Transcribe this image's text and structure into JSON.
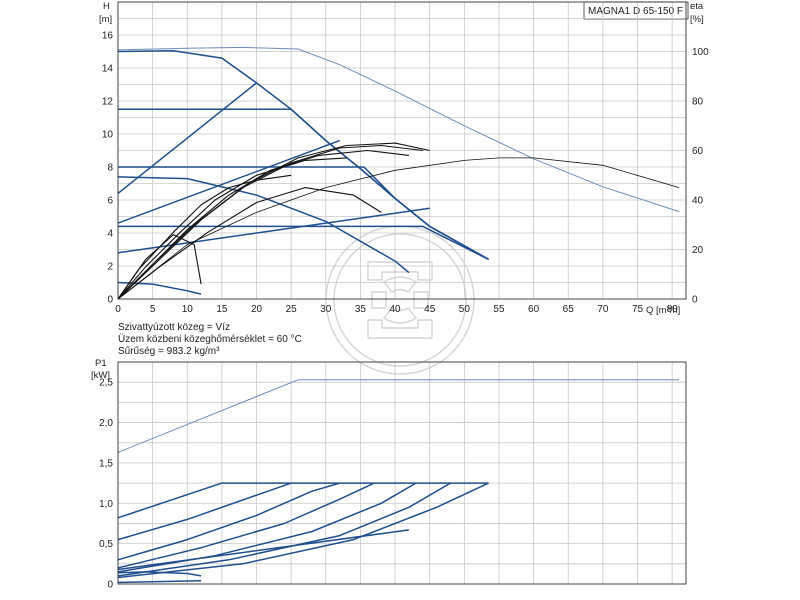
{
  "title": "MAGNA1 D 65-150 F",
  "info": {
    "line1": "Szivattyúzott közeg = Víz",
    "line2": "Üzem közbeni közeghőmérséklet = 60 °C",
    "line3": "Sűrűség = 983.2 kg/m³"
  },
  "colors": {
    "curve": "#1f4e8c",
    "thin": "#6f8fb8",
    "eta": "#111111",
    "grid": "#c8c8c8"
  },
  "chart_data": [
    {
      "type": "line",
      "title": "MAGNA1 D 65-150 F",
      "xlabel": "Q [m³/h]",
      "ylabel_unit": "[m]",
      "ylabel": "H",
      "y2label": "eta",
      "y2label_unit": "[%]",
      "xlim": [
        0,
        82
      ],
      "ylim": [
        0,
        18
      ],
      "y2lim": [
        0,
        120
      ],
      "x_ticks": [
        0,
        5,
        10,
        15,
        20,
        25,
        30,
        35,
        40,
        45,
        50,
        55,
        60,
        65,
        70,
        75,
        80
      ],
      "y_ticks": [
        0,
        2,
        4,
        6,
        8,
        10,
        12,
        14,
        16
      ],
      "y2_ticks": [
        0,
        20,
        40,
        60,
        80,
        100
      ],
      "grid": true,
      "series": [
        {
          "style": "thin",
          "x": [
            0,
            10,
            18,
            26,
            32,
            40,
            50,
            60,
            70,
            81
          ],
          "y": [
            15.1,
            15.2,
            15.25,
            15.15,
            14.2,
            12.6,
            10.5,
            8.5,
            6.8,
            5.3
          ]
        },
        {
          "style": "bold",
          "x": [
            0,
            8,
            15,
            20,
            25,
            30,
            35,
            40,
            45,
            53.5
          ],
          "y": [
            15.0,
            15.05,
            14.6,
            13.1,
            11.5,
            9.6,
            7.9,
            6.1,
            4.4,
            2.4
          ]
        },
        {
          "style": "bold",
          "x": [
            0,
            20
          ],
          "y": [
            6.4,
            13.1
          ]
        },
        {
          "style": "bold",
          "x": [
            0,
            25,
            30,
            35,
            40,
            45,
            53.5
          ],
          "y": [
            11.5,
            11.5,
            9.6,
            7.9,
            6.1,
            4.4,
            2.4
          ]
        },
        {
          "style": "bold",
          "x": [
            0,
            32
          ],
          "y": [
            4.6,
            9.6
          ]
        },
        {
          "style": "bold",
          "x": [
            0,
            35.5,
            40,
            45,
            53.5
          ],
          "y": [
            8.0,
            8.0,
            6.1,
            4.4,
            2.4
          ]
        },
        {
          "style": "bold",
          "x": [
            0,
            10,
            20,
            30,
            40,
            42
          ],
          "y": [
            7.4,
            7.3,
            6.3,
            4.7,
            2.3,
            1.6
          ]
        },
        {
          "style": "bold",
          "x": [
            0,
            44,
            53.5
          ],
          "y": [
            4.4,
            4.4,
            2.4
          ]
        },
        {
          "style": "bold",
          "x": [
            0,
            45
          ],
          "y": [
            2.8,
            5.5
          ]
        },
        {
          "style": "bold",
          "x": [
            0,
            5,
            10,
            12
          ],
          "y": [
            1.0,
            0.9,
            0.5,
            0.3
          ]
        },
        {
          "style": "eta",
          "x": [
            0,
            3,
            8,
            12,
            16,
            20,
            25
          ],
          "y": [
            0,
            12,
            27,
            38,
            45,
            48,
            50
          ]
        },
        {
          "style": "eta",
          "x": [
            0,
            4,
            9,
            14,
            20,
            27,
            33
          ],
          "y": [
            0,
            13,
            27,
            40,
            50,
            56,
            57
          ]
        },
        {
          "style": "eta",
          "x": [
            0,
            5,
            10,
            16,
            22,
            29,
            36,
            42
          ],
          "y": [
            0,
            14,
            28,
            42,
            52,
            58,
            60,
            58
          ]
        },
        {
          "style": "eta",
          "x": [
            0,
            5,
            11,
            18,
            25,
            32,
            38,
            44
          ],
          "y": [
            0,
            14,
            30,
            45,
            55,
            61,
            62,
            60
          ]
        },
        {
          "style": "eta",
          "x": [
            0,
            6,
            12,
            19,
            26,
            33,
            40,
            45
          ],
          "y": [
            0,
            16,
            32,
            47,
            57,
            62,
            63,
            60
          ]
        },
        {
          "style": "eta",
          "x": [
            0,
            4,
            8,
            11,
            12
          ],
          "y": [
            0,
            16,
            26,
            22,
            6
          ]
        },
        {
          "style": "eta",
          "x": [
            0,
            6,
            13,
            20,
            27,
            34,
            38
          ],
          "y": [
            0,
            13,
            27,
            39,
            45,
            42,
            35
          ]
        },
        {
          "style": "eta_thin",
          "x": [
            0,
            10,
            20,
            30,
            40,
            50,
            55,
            60,
            70,
            81
          ],
          "y": [
            0,
            22,
            35,
            45,
            52,
            56,
            57,
            57,
            54,
            45
          ]
        }
      ]
    },
    {
      "type": "line",
      "ylabel": "P1",
      "ylabel_unit": "[kW]",
      "xlim": [
        0,
        82
      ],
      "ylim": [
        0,
        2.75
      ],
      "y_ticks": [
        "0",
        "0,5",
        "1,0",
        "1,5",
        "2,0",
        "2,5"
      ],
      "y_tick_values": [
        0,
        0.5,
        1.0,
        1.5,
        2.0,
        2.5
      ],
      "grid": true,
      "series": [
        {
          "style": "thin",
          "x": [
            0,
            26,
            81
          ],
          "y": [
            1.63,
            2.53,
            2.53
          ]
        },
        {
          "style": "bold",
          "x": [
            0,
            15,
            53.5
          ],
          "y": [
            0.82,
            1.25,
            1.25
          ]
        },
        {
          "style": "bold",
          "x": [
            0,
            10,
            20,
            25
          ],
          "y": [
            0.55,
            0.8,
            1.1,
            1.25
          ]
        },
        {
          "style": "bold",
          "x": [
            0,
            10,
            20,
            28,
            32
          ],
          "y": [
            0.3,
            0.55,
            0.85,
            1.15,
            1.25
          ]
        },
        {
          "style": "bold",
          "x": [
            0,
            12,
            24,
            32,
            37
          ],
          "y": [
            0.2,
            0.45,
            0.75,
            1.05,
            1.25
          ]
        },
        {
          "style": "bold",
          "x": [
            0,
            14,
            28,
            38,
            43
          ],
          "y": [
            0.15,
            0.35,
            0.65,
            1.0,
            1.25
          ]
        },
        {
          "style": "bold",
          "x": [
            0,
            16,
            32,
            42,
            48
          ],
          "y": [
            0.1,
            0.3,
            0.6,
            0.95,
            1.25
          ]
        },
        {
          "style": "bold",
          "x": [
            0,
            18,
            34,
            46,
            53.5
          ],
          "y": [
            0.08,
            0.25,
            0.55,
            0.95,
            1.25
          ]
        },
        {
          "style": "bold",
          "x": [
            0,
            42
          ],
          "y": [
            0.18,
            0.67
          ]
        },
        {
          "style": "bold",
          "x": [
            0,
            12
          ],
          "y": [
            0.02,
            0.04
          ]
        },
        {
          "style": "bold",
          "x": [
            0,
            4,
            10,
            12
          ],
          "y": [
            0.14,
            0.15,
            0.13,
            0.1
          ]
        }
      ]
    }
  ]
}
